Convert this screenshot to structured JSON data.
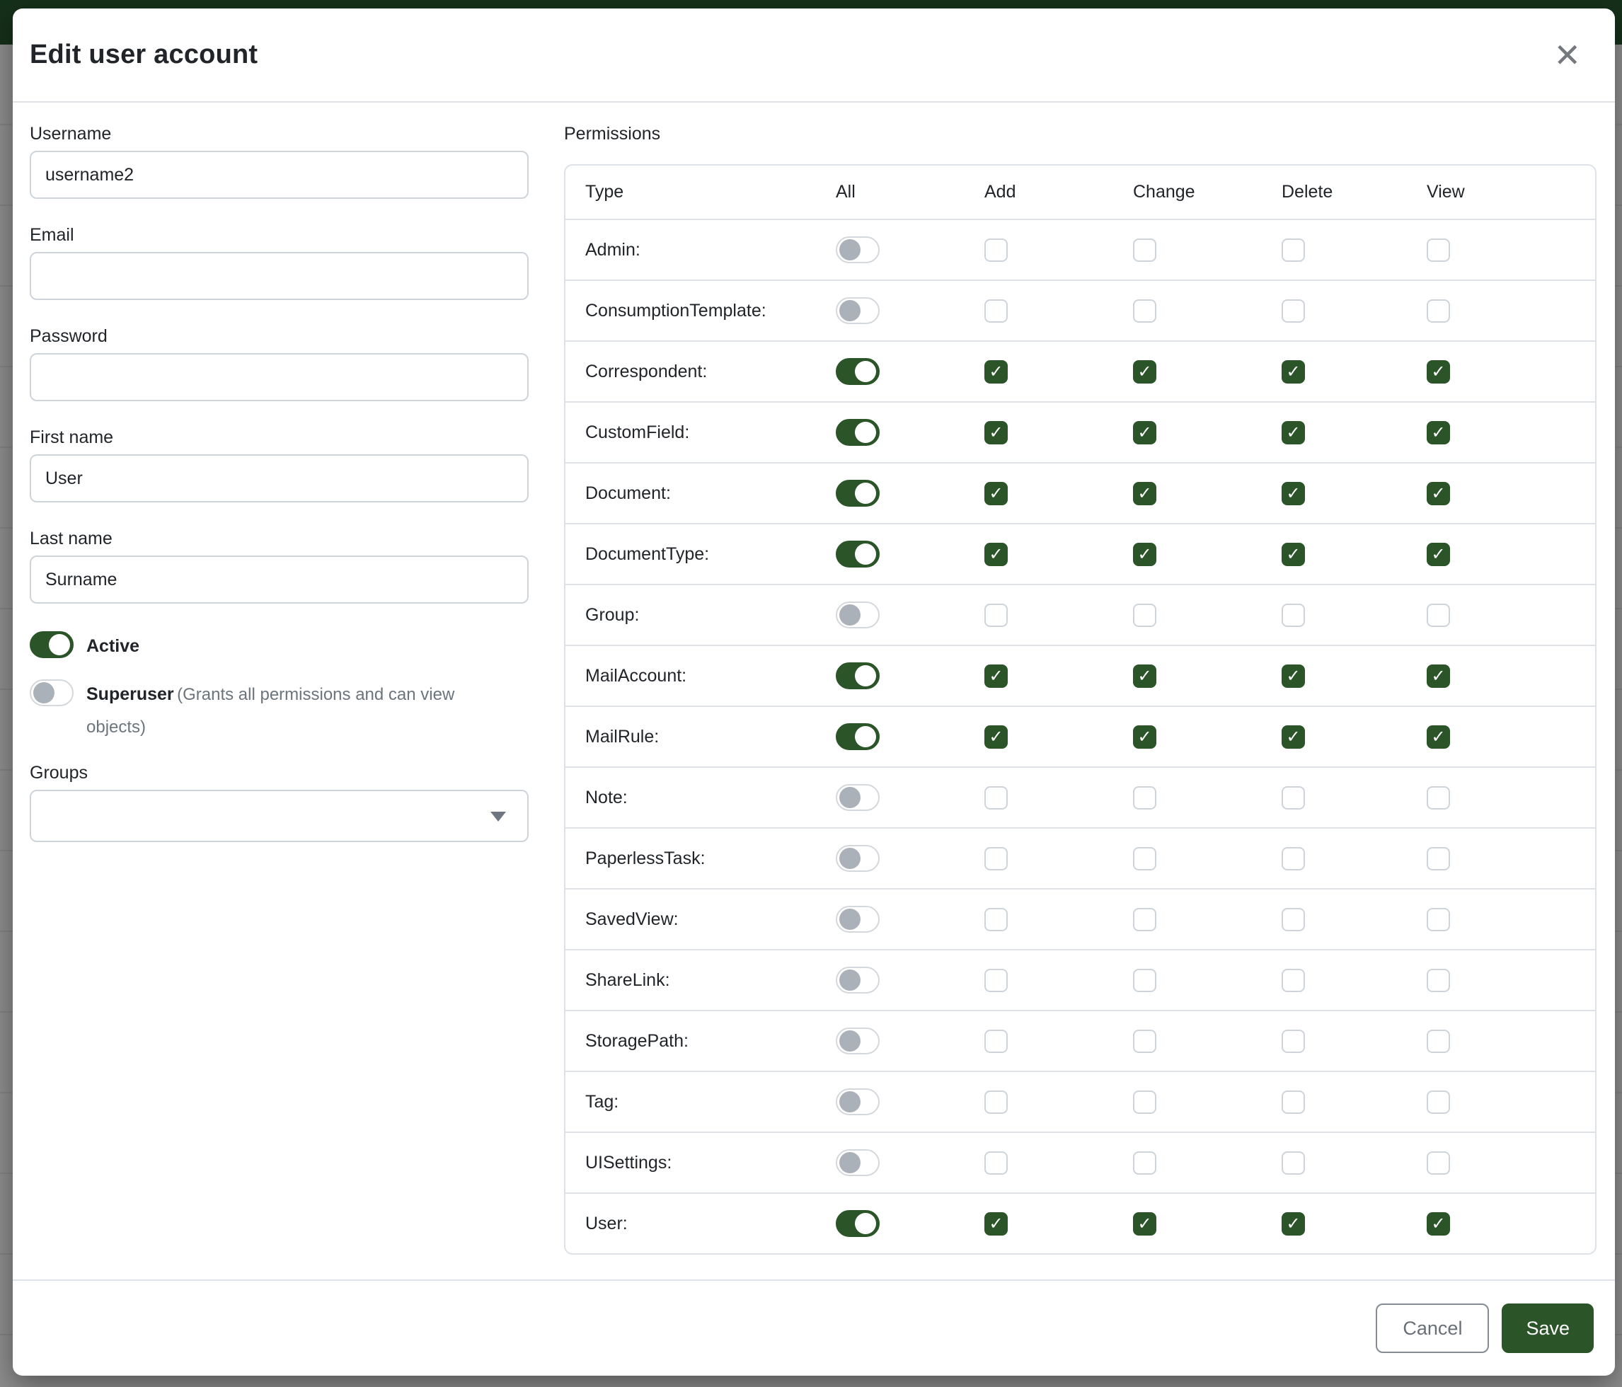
{
  "colors": {
    "primary_green": "#2b5429",
    "navbar_green": "#15301a",
    "backdrop_gray": "#8d8d8d"
  },
  "icons": {
    "close": "✕",
    "check": "✓",
    "dropdown_caret": "caret-down"
  },
  "modal": {
    "title": "Edit user account"
  },
  "form": {
    "username": {
      "label": "Username",
      "value": "username2"
    },
    "email": {
      "label": "Email",
      "value": ""
    },
    "password": {
      "label": "Password",
      "value": ""
    },
    "first_name": {
      "label": "First name",
      "value": "User"
    },
    "last_name": {
      "label": "Last name",
      "value": "Surname"
    },
    "active": {
      "label": "Active",
      "enabled": true
    },
    "superuser": {
      "label": "Superuser",
      "description": "(Grants all permissions and can view objects)",
      "enabled": false
    },
    "groups": {
      "label": "Groups",
      "value": ""
    }
  },
  "permissions": {
    "label": "Permissions",
    "columns": [
      "Type",
      "All",
      "Add",
      "Change",
      "Delete",
      "View"
    ],
    "rows": [
      {
        "type": "Admin:",
        "all": false,
        "add": false,
        "change": false,
        "delete": false,
        "view": false
      },
      {
        "type": "ConsumptionTemplate:",
        "all": false,
        "add": false,
        "change": false,
        "delete": false,
        "view": false
      },
      {
        "type": "Correspondent:",
        "all": true,
        "add": true,
        "change": true,
        "delete": true,
        "view": true
      },
      {
        "type": "CustomField:",
        "all": true,
        "add": true,
        "change": true,
        "delete": true,
        "view": true
      },
      {
        "type": "Document:",
        "all": true,
        "add": true,
        "change": true,
        "delete": true,
        "view": true
      },
      {
        "type": "DocumentType:",
        "all": true,
        "add": true,
        "change": true,
        "delete": true,
        "view": true
      },
      {
        "type": "Group:",
        "all": false,
        "add": false,
        "change": false,
        "delete": false,
        "view": false
      },
      {
        "type": "MailAccount:",
        "all": true,
        "add": true,
        "change": true,
        "delete": true,
        "view": true
      },
      {
        "type": "MailRule:",
        "all": true,
        "add": true,
        "change": true,
        "delete": true,
        "view": true
      },
      {
        "type": "Note:",
        "all": false,
        "add": false,
        "change": false,
        "delete": false,
        "view": false
      },
      {
        "type": "PaperlessTask:",
        "all": false,
        "add": false,
        "change": false,
        "delete": false,
        "view": false
      },
      {
        "type": "SavedView:",
        "all": false,
        "add": false,
        "change": false,
        "delete": false,
        "view": false
      },
      {
        "type": "ShareLink:",
        "all": false,
        "add": false,
        "change": false,
        "delete": false,
        "view": false
      },
      {
        "type": "StoragePath:",
        "all": false,
        "add": false,
        "change": false,
        "delete": false,
        "view": false
      },
      {
        "type": "Tag:",
        "all": false,
        "add": false,
        "change": false,
        "delete": false,
        "view": false
      },
      {
        "type": "UISettings:",
        "all": false,
        "add": false,
        "change": false,
        "delete": false,
        "view": false
      },
      {
        "type": "User:",
        "all": true,
        "add": true,
        "change": true,
        "delete": true,
        "view": true
      }
    ]
  },
  "footer": {
    "cancel_label": "Cancel",
    "save_label": "Save"
  }
}
